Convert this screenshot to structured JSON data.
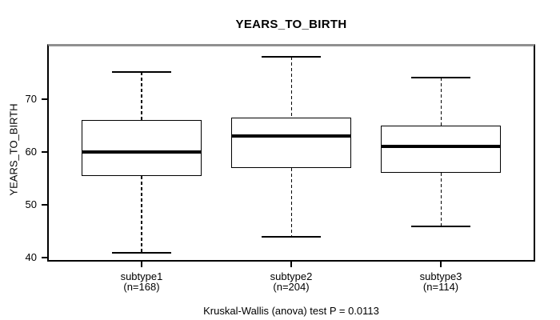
{
  "chart_data": {
    "type": "boxplot",
    "title": "YEARS_TO_BIRTH",
    "ylabel": "YEARS_TO_BIRTH",
    "xlabel": "",
    "annotation": "Kruskal-Wallis (anova) test P = 0.0113",
    "grid": false,
    "legend": "none",
    "yticks": [
      40,
      50,
      60,
      70
    ],
    "ylim": [
      39.6,
      79.9
    ],
    "xlim": [
      0.38,
      3.62
    ],
    "box_width": 0.8,
    "cap_width": 0.4,
    "colors": {
      "line": "#000000",
      "box_fill": "#ffffff",
      "background": "#ffffff"
    },
    "groups": [
      {
        "label": "subtype1",
        "n": 168,
        "n_label": "(n=168)",
        "x": 1,
        "whisker_low": 41,
        "q1": 55.5,
        "median": 60,
        "q3": 66,
        "whisker_high": 75,
        "outliers": []
      },
      {
        "label": "subtype2",
        "n": 204,
        "n_label": "(n=204)",
        "x": 2,
        "whisker_low": 44,
        "q1": 57,
        "median": 63,
        "q3": 66.5,
        "whisker_high": 78,
        "outliers": []
      },
      {
        "label": "subtype3",
        "n": 114,
        "n_label": "(n=114)",
        "x": 3,
        "whisker_low": 46,
        "q1": 56,
        "median": 61,
        "q3": 65,
        "whisker_high": 74,
        "outliers": []
      }
    ]
  }
}
